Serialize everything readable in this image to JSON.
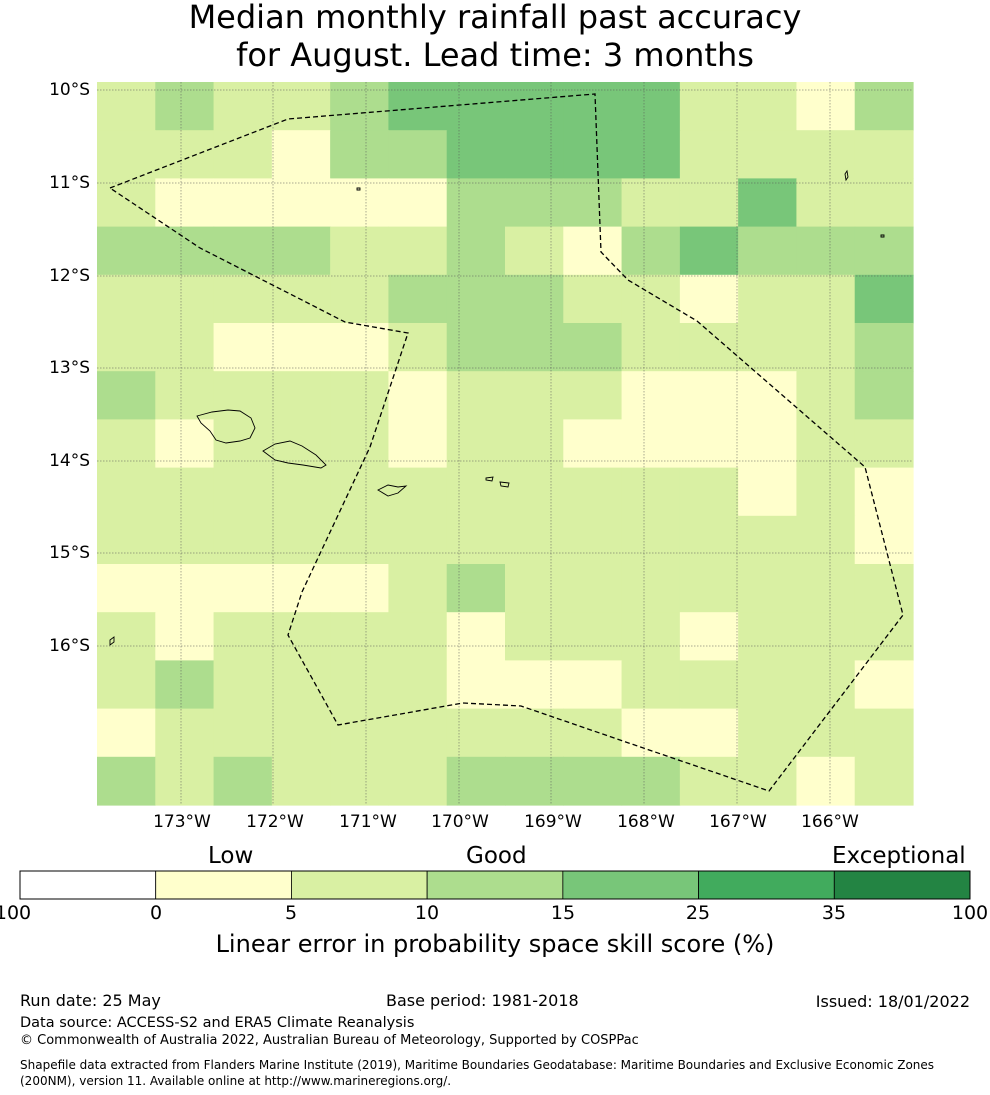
{
  "title": {
    "line1": "Median monthly rainfall past accuracy",
    "line2": "for August. Lead time: 3 months"
  },
  "map": {
    "lat_ticks": [
      "10°S",
      "11°S",
      "12°S",
      "13°S",
      "14°S",
      "15°S",
      "16°S"
    ],
    "lon_ticks": [
      "173°W",
      "172°W",
      "171°W",
      "170°W",
      "169°W",
      "168°W",
      "167°W",
      "166°W"
    ],
    "grid_cells_skill_class": [
      [
        2,
        3,
        2,
        2,
        3,
        4,
        4,
        4,
        4,
        4,
        2,
        2,
        1,
        3
      ],
      [
        2,
        2,
        2,
        1,
        3,
        3,
        4,
        4,
        4,
        4,
        2,
        2,
        2,
        2
      ],
      [
        2,
        1,
        1,
        1,
        1,
        1,
        3,
        3,
        3,
        2,
        2,
        4,
        2,
        2
      ],
      [
        3,
        3,
        3,
        3,
        2,
        2,
        3,
        2,
        1,
        3,
        4,
        3,
        3,
        3
      ],
      [
        2,
        2,
        2,
        2,
        2,
        3,
        3,
        3,
        2,
        2,
        1,
        2,
        2,
        4
      ],
      [
        2,
        2,
        1,
        1,
        1,
        2,
        3,
        3,
        3,
        2,
        2,
        2,
        2,
        3
      ],
      [
        3,
        2,
        2,
        2,
        2,
        1,
        2,
        2,
        2,
        1,
        1,
        1,
        2,
        3
      ],
      [
        2,
        1,
        2,
        2,
        2,
        1,
        2,
        2,
        1,
        1,
        1,
        1,
        2,
        2
      ],
      [
        2,
        2,
        2,
        2,
        2,
        2,
        2,
        2,
        2,
        2,
        2,
        1,
        2,
        1
      ],
      [
        2,
        2,
        2,
        2,
        2,
        2,
        2,
        2,
        2,
        2,
        2,
        2,
        2,
        1
      ],
      [
        1,
        1,
        1,
        1,
        1,
        2,
        3,
        2,
        2,
        2,
        2,
        2,
        2,
        2
      ],
      [
        2,
        1,
        2,
        2,
        2,
        2,
        1,
        2,
        2,
        2,
        1,
        2,
        2,
        2
      ],
      [
        2,
        3,
        2,
        2,
        2,
        2,
        1,
        1,
        1,
        2,
        2,
        2,
        2,
        1
      ],
      [
        1,
        2,
        2,
        2,
        2,
        2,
        2,
        2,
        2,
        1,
        1,
        2,
        2,
        2
      ],
      [
        3,
        2,
        3,
        2,
        2,
        2,
        3,
        3,
        3,
        3,
        2,
        2,
        1,
        2
      ]
    ],
    "islands": [
      "Samoa",
      "American Samoa",
      "Manu'a",
      "Swains Island",
      "Rose Atoll"
    ]
  },
  "colorbar": {
    "classes": [
      "Low",
      "Good",
      "Exceptional"
    ],
    "ticks": [
      "-100",
      "0",
      "5",
      "10",
      "15",
      "25",
      "35",
      "100"
    ],
    "colors": [
      "#ffffff",
      "#ffffcc",
      "#d9f0a3",
      "#addd8e",
      "#78c679",
      "#41ab5d",
      "#238443"
    ],
    "label": "Linear error in probability space skill score (%)"
  },
  "footer": {
    "run_date": "Run date: 25 May",
    "base_period": "Base period: 1981-2018",
    "issued": "Issued: 18/01/2022",
    "data_source": "Data source: ACCESS-S2 and ERA5 Climate Reanalysis",
    "copyright": "© Commonwealth of Australia 2022, Australian Bureau of Meteorology, Supported by COSPPac",
    "shapefile_line1": "Shapefile data extracted from Flanders Marine Institute (2019), Maritime Boundaries Geodatabase: Maritime Boundaries and Exclusive Economic Zones",
    "shapefile_line2": "(200NM), version 11. Available online at http://www.marineregions.org/."
  }
}
